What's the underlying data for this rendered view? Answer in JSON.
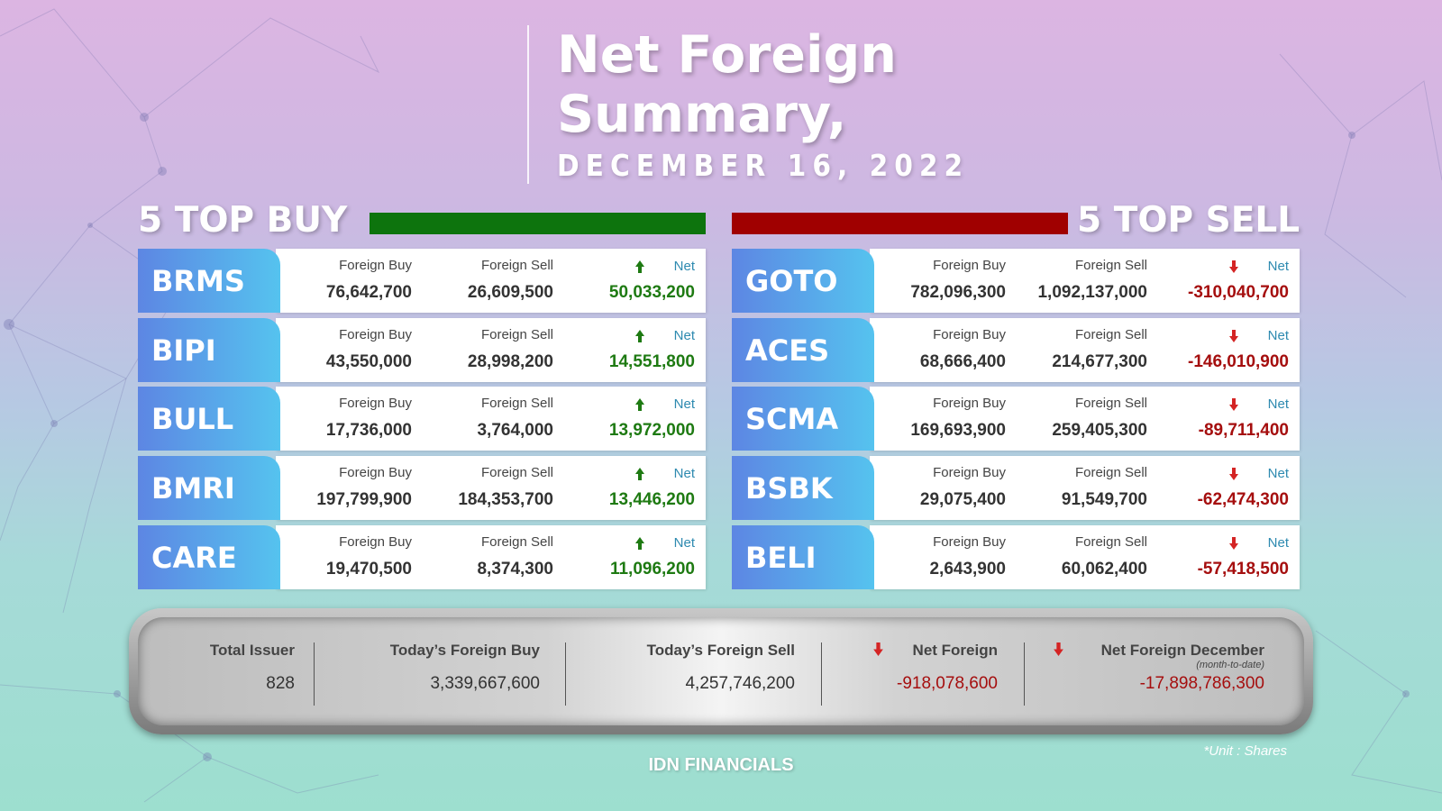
{
  "title": {
    "line1": "Net Foreign",
    "line2": "Summary,",
    "date": "DECEMBER 16, 2022"
  },
  "top_buy": {
    "heading": "5 TOP BUY",
    "bar_color": "#0d740d",
    "rows": [
      {
        "ticker": "BRMS",
        "buy_label": "Foreign Buy",
        "buy": "76,642,700",
        "sell_label": "Foreign Sell",
        "sell": "26,609,500",
        "net_label": "Net",
        "net": "50,033,200"
      },
      {
        "ticker": "BIPI",
        "buy_label": "Foreign Buy",
        "buy": "43,550,000",
        "sell_label": "Foreign Sell",
        "sell": "28,998,200",
        "net_label": "Net",
        "net": "14,551,800"
      },
      {
        "ticker": "BULL",
        "buy_label": "Foreign Buy",
        "buy": "17,736,000",
        "sell_label": "Foreign Sell",
        "sell": "3,764,000",
        "net_label": "Net",
        "net": "13,972,000"
      },
      {
        "ticker": "BMRI",
        "buy_label": "Foreign Buy",
        "buy": "197,799,900",
        "sell_label": "Foreign Sell",
        "sell": "184,353,700",
        "net_label": "Net",
        "net": "13,446,200"
      },
      {
        "ticker": "CARE",
        "buy_label": "Foreign Buy",
        "buy": "19,470,500",
        "sell_label": "Foreign Sell",
        "sell": "8,374,300",
        "net_label": "Net",
        "net": "11,096,200"
      }
    ]
  },
  "top_sell": {
    "heading": "5 TOP SELL",
    "bar_color": "#a00000",
    "rows": [
      {
        "ticker": "GOTO",
        "buy_label": "Foreign Buy",
        "buy": "782,096,300",
        "sell_label": "Foreign Sell",
        "sell": "1,092,137,000",
        "net_label": "Net",
        "net": "-310,040,700"
      },
      {
        "ticker": "ACES",
        "buy_label": "Foreign Buy",
        "buy": "68,666,400",
        "sell_label": "Foreign Sell",
        "sell": "214,677,300",
        "net_label": "Net",
        "net": "-146,010,900"
      },
      {
        "ticker": "SCMA",
        "buy_label": "Foreign Buy",
        "buy": "169,693,900",
        "sell_label": "Foreign Sell",
        "sell": "259,405,300",
        "net_label": "Net",
        "net": "-89,711,400"
      },
      {
        "ticker": "BSBK",
        "buy_label": "Foreign Buy",
        "buy": "29,075,400",
        "sell_label": "Foreign Sell",
        "sell": "91,549,700",
        "net_label": "Net",
        "net": "-62,474,300"
      },
      {
        "ticker": "BELI",
        "buy_label": "Foreign Buy",
        "buy": "2,643,900",
        "sell_label": "Foreign Sell",
        "sell": "60,062,400",
        "net_label": "Net",
        "net": "-57,418,500"
      }
    ]
  },
  "summary": {
    "total_issuer_label": "Total Issuer",
    "total_issuer": "828",
    "foreign_buy_label": "Today’s Foreign Buy",
    "foreign_buy": "3,339,667,600",
    "foreign_sell_label": "Today’s Foreign Sell",
    "foreign_sell": "4,257,746,200",
    "net_foreign_label": "Net Foreign",
    "net_foreign": "-918,078,600",
    "net_dec_label": "Net Foreign December",
    "net_dec_sub": "(month-to-date)",
    "net_dec": "-17,898,786,300"
  },
  "footer": {
    "brand": "IDN FINANCIALS",
    "unit": "*Unit : Shares"
  },
  "colors": {
    "positive": "#1e7a12",
    "negative": "#a50e0e",
    "net_label": "#2e8ab0",
    "arrow_up": "#1e7a12",
    "arrow_down": "#d42424"
  }
}
